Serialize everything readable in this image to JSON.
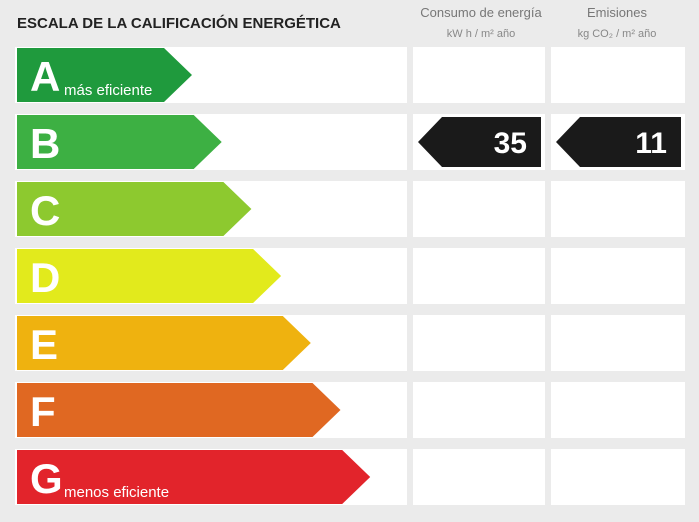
{
  "header": {
    "title": "ESCALA DE LA CALIFICACIÓN ENERGÉTICA",
    "columns": [
      {
        "title": "Consumo de energía",
        "unit": "kW h / m² año"
      },
      {
        "title": "Emisiones",
        "unit": "kg CO₂ / m² año"
      }
    ]
  },
  "rows": [
    {
      "letter": "A",
      "note": "más eficiente",
      "color": "#1f9a3d"
    },
    {
      "letter": "B",
      "color": "#3db043",
      "consumption": 35,
      "emissions": 11
    },
    {
      "letter": "C",
      "color": "#8dc92f"
    },
    {
      "letter": "D",
      "color": "#e2ea1c"
    },
    {
      "letter": "E",
      "color": "#efb20f"
    },
    {
      "letter": "F",
      "color": "#e06822"
    },
    {
      "letter": "G",
      "note": "menos eficiente",
      "color": "#e2242b"
    }
  ]
}
